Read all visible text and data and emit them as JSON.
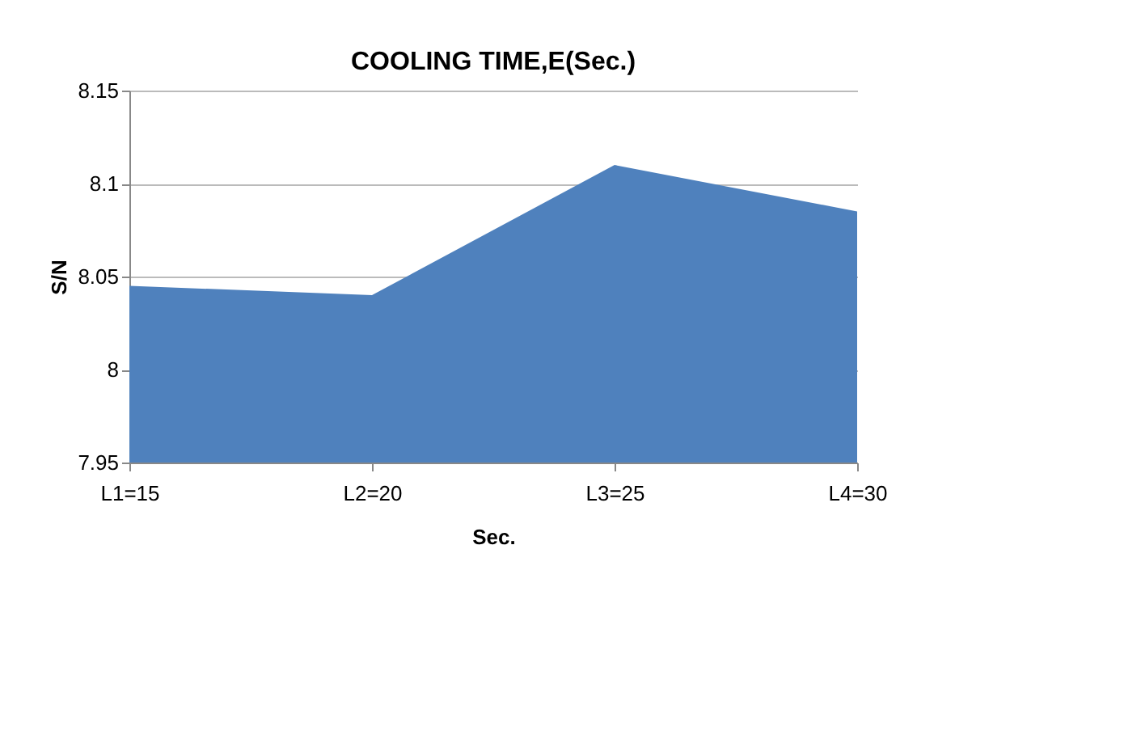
{
  "chart_data": {
    "type": "area",
    "title": "COOLING TIME,E(Sec.)",
    "xlabel": "Sec.",
    "ylabel": "S/N",
    "categories": [
      "L1=15",
      "L2=20",
      "L3=25",
      "L4=30"
    ],
    "series": [
      {
        "color": "#4f81bd",
        "values": [
          8.045,
          8.04,
          8.11,
          8.085
        ]
      }
    ],
    "ylim": [
      7.95,
      8.15
    ],
    "yticks": [
      7.95,
      8,
      8.05,
      8.1,
      8.15
    ],
    "grid": "y"
  }
}
